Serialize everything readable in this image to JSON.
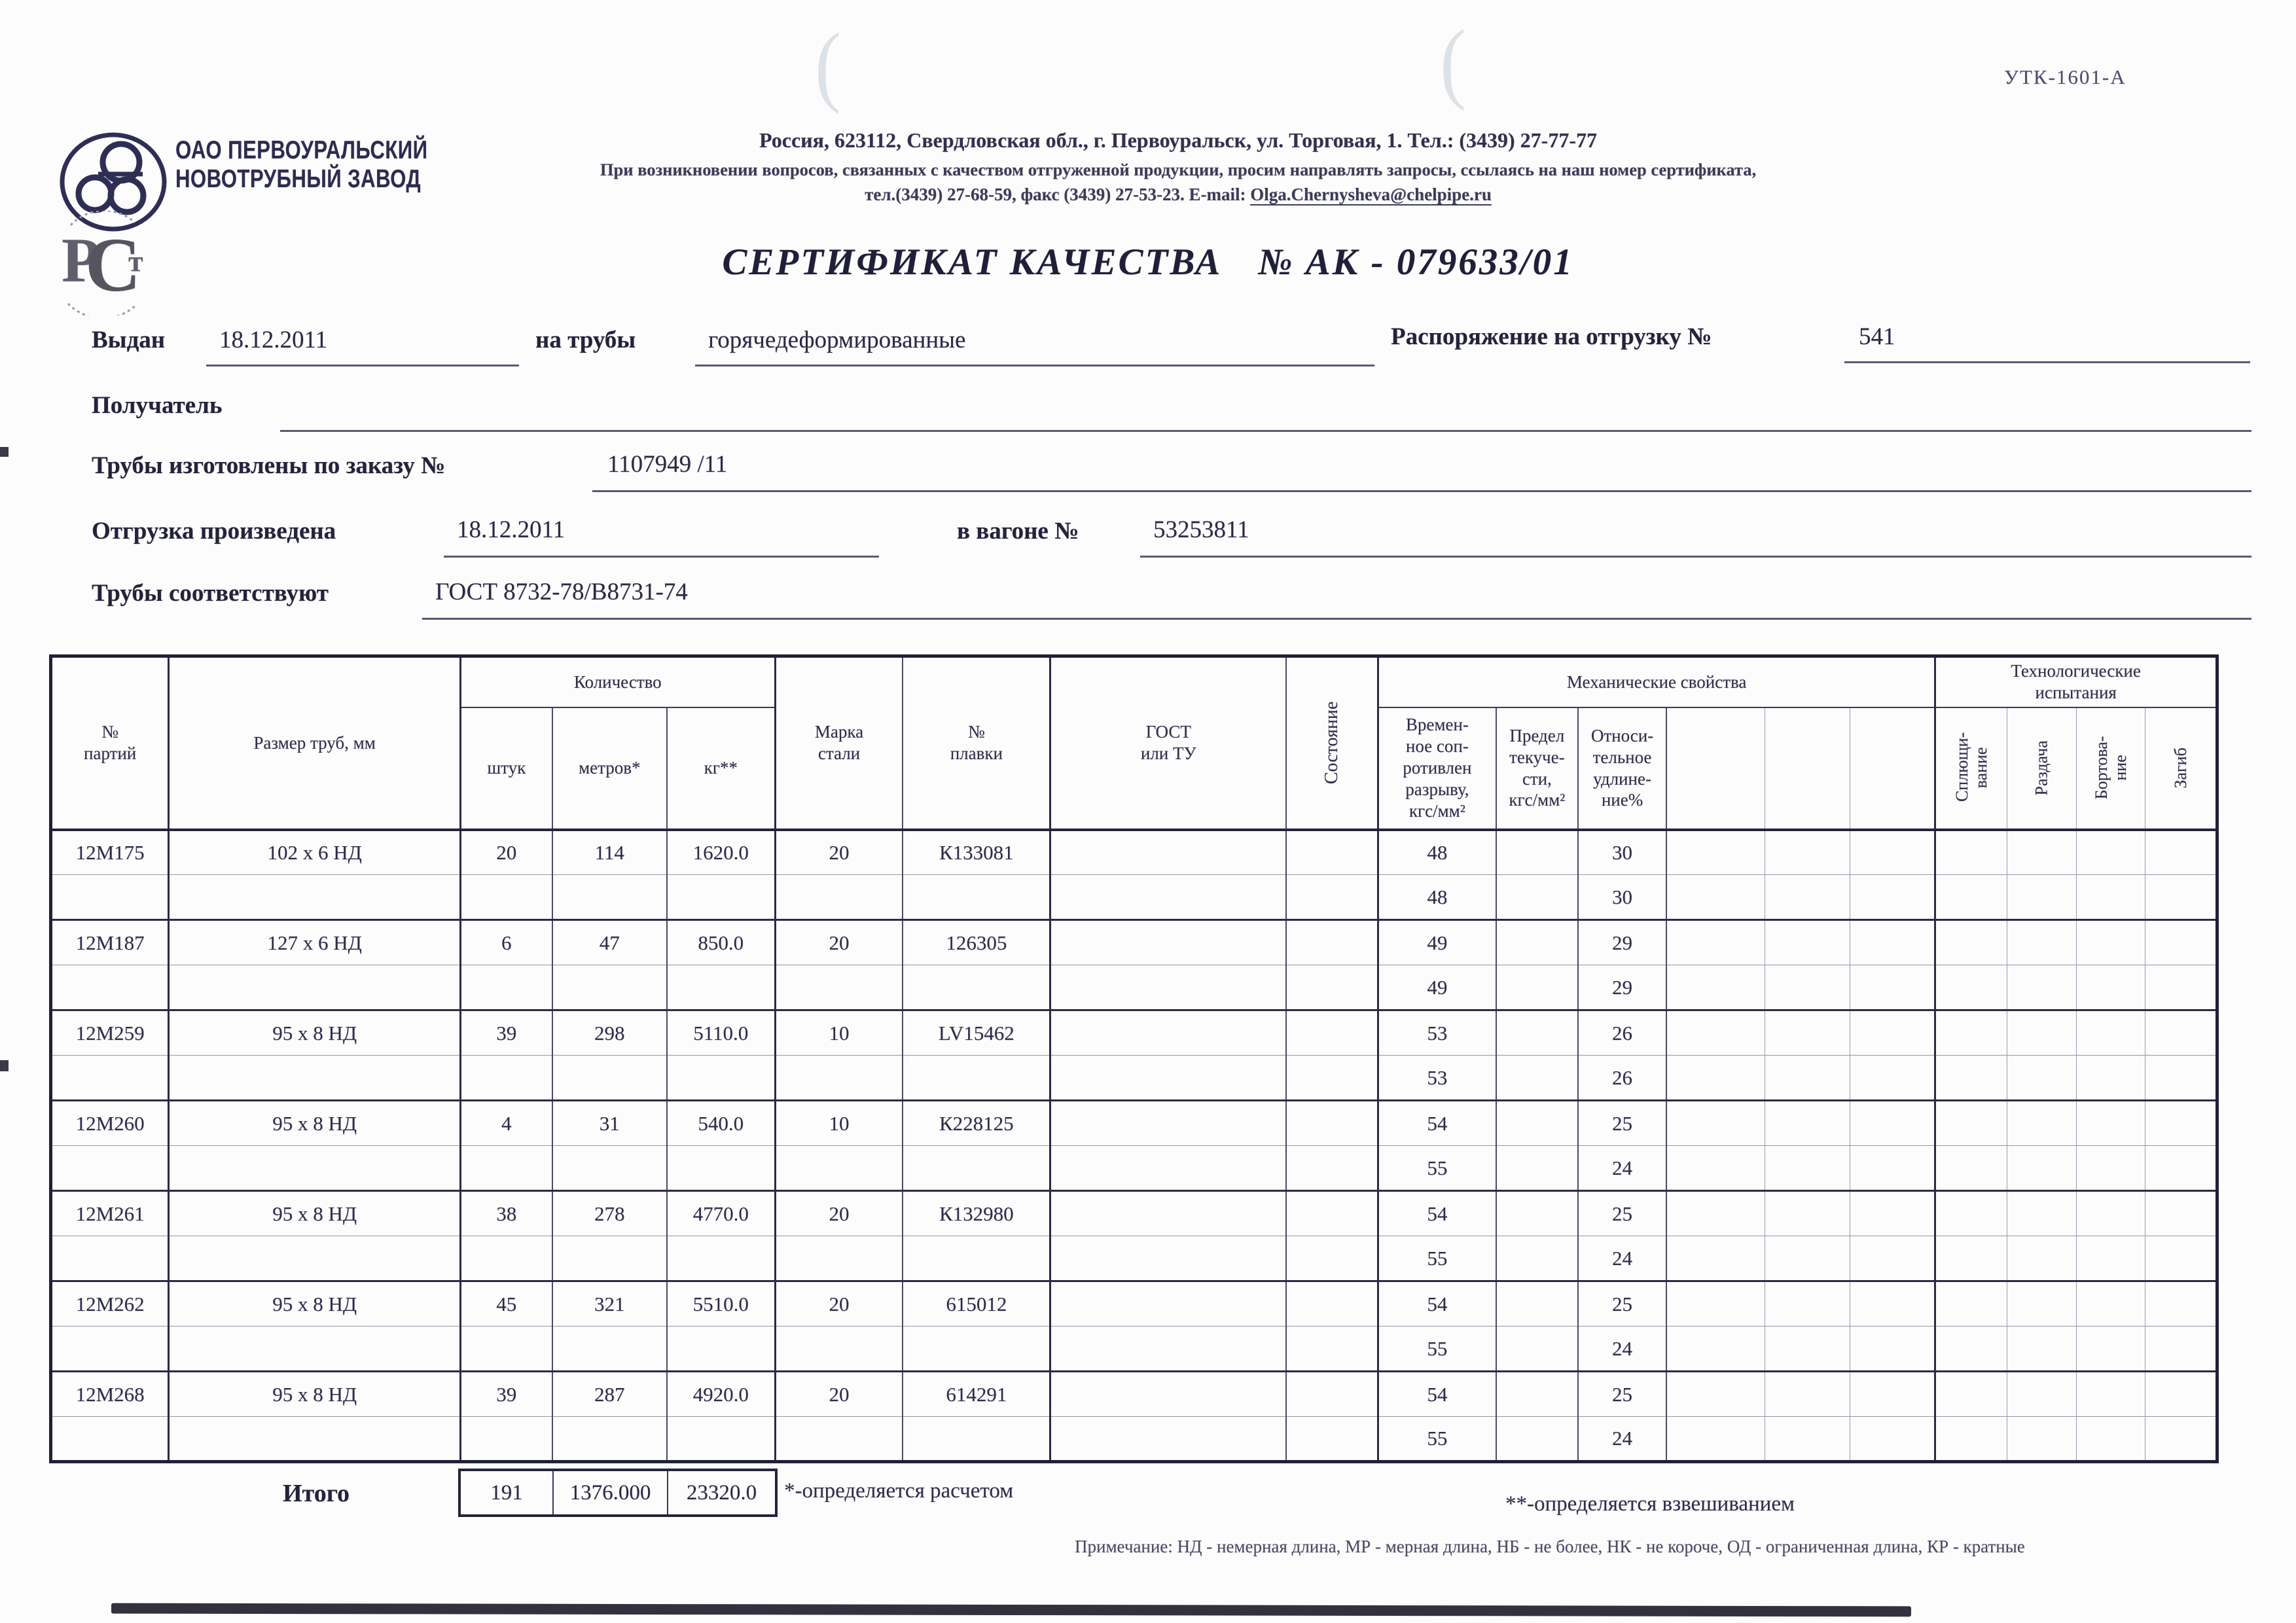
{
  "letterhead": {
    "company_name": "ОАО ПЕРВОУРАЛЬСКИЙ\nНОВОТРУБНЫЙ  ЗАВОД",
    "cert_mark_text": "РСт",
    "address_line1": "Россия, 623112, Свердловская обл., г. Первоуральск, ул. Торговая, 1. Тел.: (3439) 27-77-77",
    "address_line2": "При возникновении вопросов, связанных с качеством отгруженной продукции, просим направлять запросы, ссылаясь на наш номер сертификата,",
    "address_line3_prefix": "тел.(3439) 27-68-59, факс (3439) 27-53-23. E-mail: ",
    "email": "Olga.Chernysheva@chelpipe.ru",
    "form_code": "УТК-1601-А"
  },
  "title": {
    "label": "СЕРТИФИКАТ КАЧЕСТВА",
    "number": "№  АК -  079633/01"
  },
  "fields": {
    "issued_label": "Выдан",
    "issued_value": "18.12.2011",
    "pipes_label": "на трубы",
    "pipes_value": "горячедеформированные",
    "ship_order_label": "Распоряжение на отгрузку №",
    "ship_order_value": "541",
    "receiver_label": "Получатель",
    "receiver_value": "",
    "made_by_order_label": "Трубы изготовлены по заказу №",
    "made_by_order_value": "1107949  /11",
    "shipped_label": "Отгрузка произведена",
    "shipped_value": "18.12.2011",
    "wagon_label": "в вагоне №",
    "wagon_value": "53253811",
    "conform_label": "Трубы соответствуют",
    "conform_value": "ГОСТ 8732-78/В8731-74"
  },
  "table": {
    "group_headers": {
      "quantity": "Количество",
      "mechanical": "Механические свойства",
      "technological": "Технологические\nиспытания"
    },
    "headers": {
      "party": "№\nпартий",
      "size": "Размер труб, мм",
      "pieces": "штук",
      "meters": "метров*",
      "kg": "кг**",
      "steel_grade": "Марка\nстали",
      "heat": "№\nплавки",
      "gost": "ГОСТ\nили ТУ",
      "state": "Состояние",
      "tensile": "Времен-\nное соп-\nротивлен\nразрыву,\nкгс/мм²",
      "yield": "Предел\nтекуче-\nсти,\nкгс/мм²",
      "elongation": "Относи-\nтельное\nудлине-\nние%",
      "flattening": "Сплющи-\nвание",
      "expansion": "Раздача",
      "flanging": "Бортова-\nние",
      "bend": "Загиб"
    },
    "rows": [
      [
        "12М175",
        "102 х 6 НД",
        "20",
        "114",
        "1620.0",
        "20",
        "К133081",
        "",
        "",
        "48",
        "",
        "30",
        "",
        "",
        "",
        "",
        "",
        "",
        ""
      ],
      [
        "",
        "",
        "",
        "",
        "",
        "",
        "",
        "",
        "",
        "48",
        "",
        "30",
        "",
        "",
        "",
        "",
        "",
        "",
        ""
      ],
      [
        "12М187",
        "127 х 6 НД",
        "6",
        "47",
        "850.0",
        "20",
        "126305",
        "",
        "",
        "49",
        "",
        "29",
        "",
        "",
        "",
        "",
        "",
        "",
        ""
      ],
      [
        "",
        "",
        "",
        "",
        "",
        "",
        "",
        "",
        "",
        "49",
        "",
        "29",
        "",
        "",
        "",
        "",
        "",
        "",
        ""
      ],
      [
        "12М259",
        "95 х 8 НД",
        "39",
        "298",
        "5110.0",
        "10",
        "LV15462",
        "",
        "",
        "53",
        "",
        "26",
        "",
        "",
        "",
        "",
        "",
        "",
        ""
      ],
      [
        "",
        "",
        "",
        "",
        "",
        "",
        "",
        "",
        "",
        "53",
        "",
        "26",
        "",
        "",
        "",
        "",
        "",
        "",
        ""
      ],
      [
        "12М260",
        "95 х 8 НД",
        "4",
        "31",
        "540.0",
        "10",
        "К228125",
        "",
        "",
        "54",
        "",
        "25",
        "",
        "",
        "",
        "",
        "",
        "",
        ""
      ],
      [
        "",
        "",
        "",
        "",
        "",
        "",
        "",
        "",
        "",
        "55",
        "",
        "24",
        "",
        "",
        "",
        "",
        "",
        "",
        ""
      ],
      [
        "12М261",
        "95 х 8 НД",
        "38",
        "278",
        "4770.0",
        "20",
        "К132980",
        "",
        "",
        "54",
        "",
        "25",
        "",
        "",
        "",
        "",
        "",
        "",
        ""
      ],
      [
        "",
        "",
        "",
        "",
        "",
        "",
        "",
        "",
        "",
        "55",
        "",
        "24",
        "",
        "",
        "",
        "",
        "",
        "",
        ""
      ],
      [
        "12М262",
        "95 х 8 НД",
        "45",
        "321",
        "5510.0",
        "20",
        "615012",
        "",
        "",
        "54",
        "",
        "25",
        "",
        "",
        "",
        "",
        "",
        "",
        ""
      ],
      [
        "",
        "",
        "",
        "",
        "",
        "",
        "",
        "",
        "",
        "55",
        "",
        "24",
        "",
        "",
        "",
        "",
        "",
        "",
        ""
      ],
      [
        "12М268",
        "95 х 8 НД",
        "39",
        "287",
        "4920.0",
        "20",
        "614291",
        "",
        "",
        "54",
        "",
        "25",
        "",
        "",
        "",
        "",
        "",
        "",
        ""
      ],
      [
        "",
        "",
        "",
        "",
        "",
        "",
        "",
        "",
        "",
        "55",
        "",
        "24",
        "",
        "",
        "",
        "",
        "",
        "",
        ""
      ]
    ],
    "totals": {
      "label": "Итого",
      "pieces": "191",
      "meters": "1376.000",
      "kg": "23320.0"
    }
  },
  "footnotes": {
    "asterisk": "*-определяется расчетом",
    "double_asterisk": "**-определяется взвешиванием",
    "note": "Примечание: НД - немерная длина, МР - мерная длина, НБ - не более, НК - не короче, ОД - ограниченная длина, КР - кратные"
  }
}
